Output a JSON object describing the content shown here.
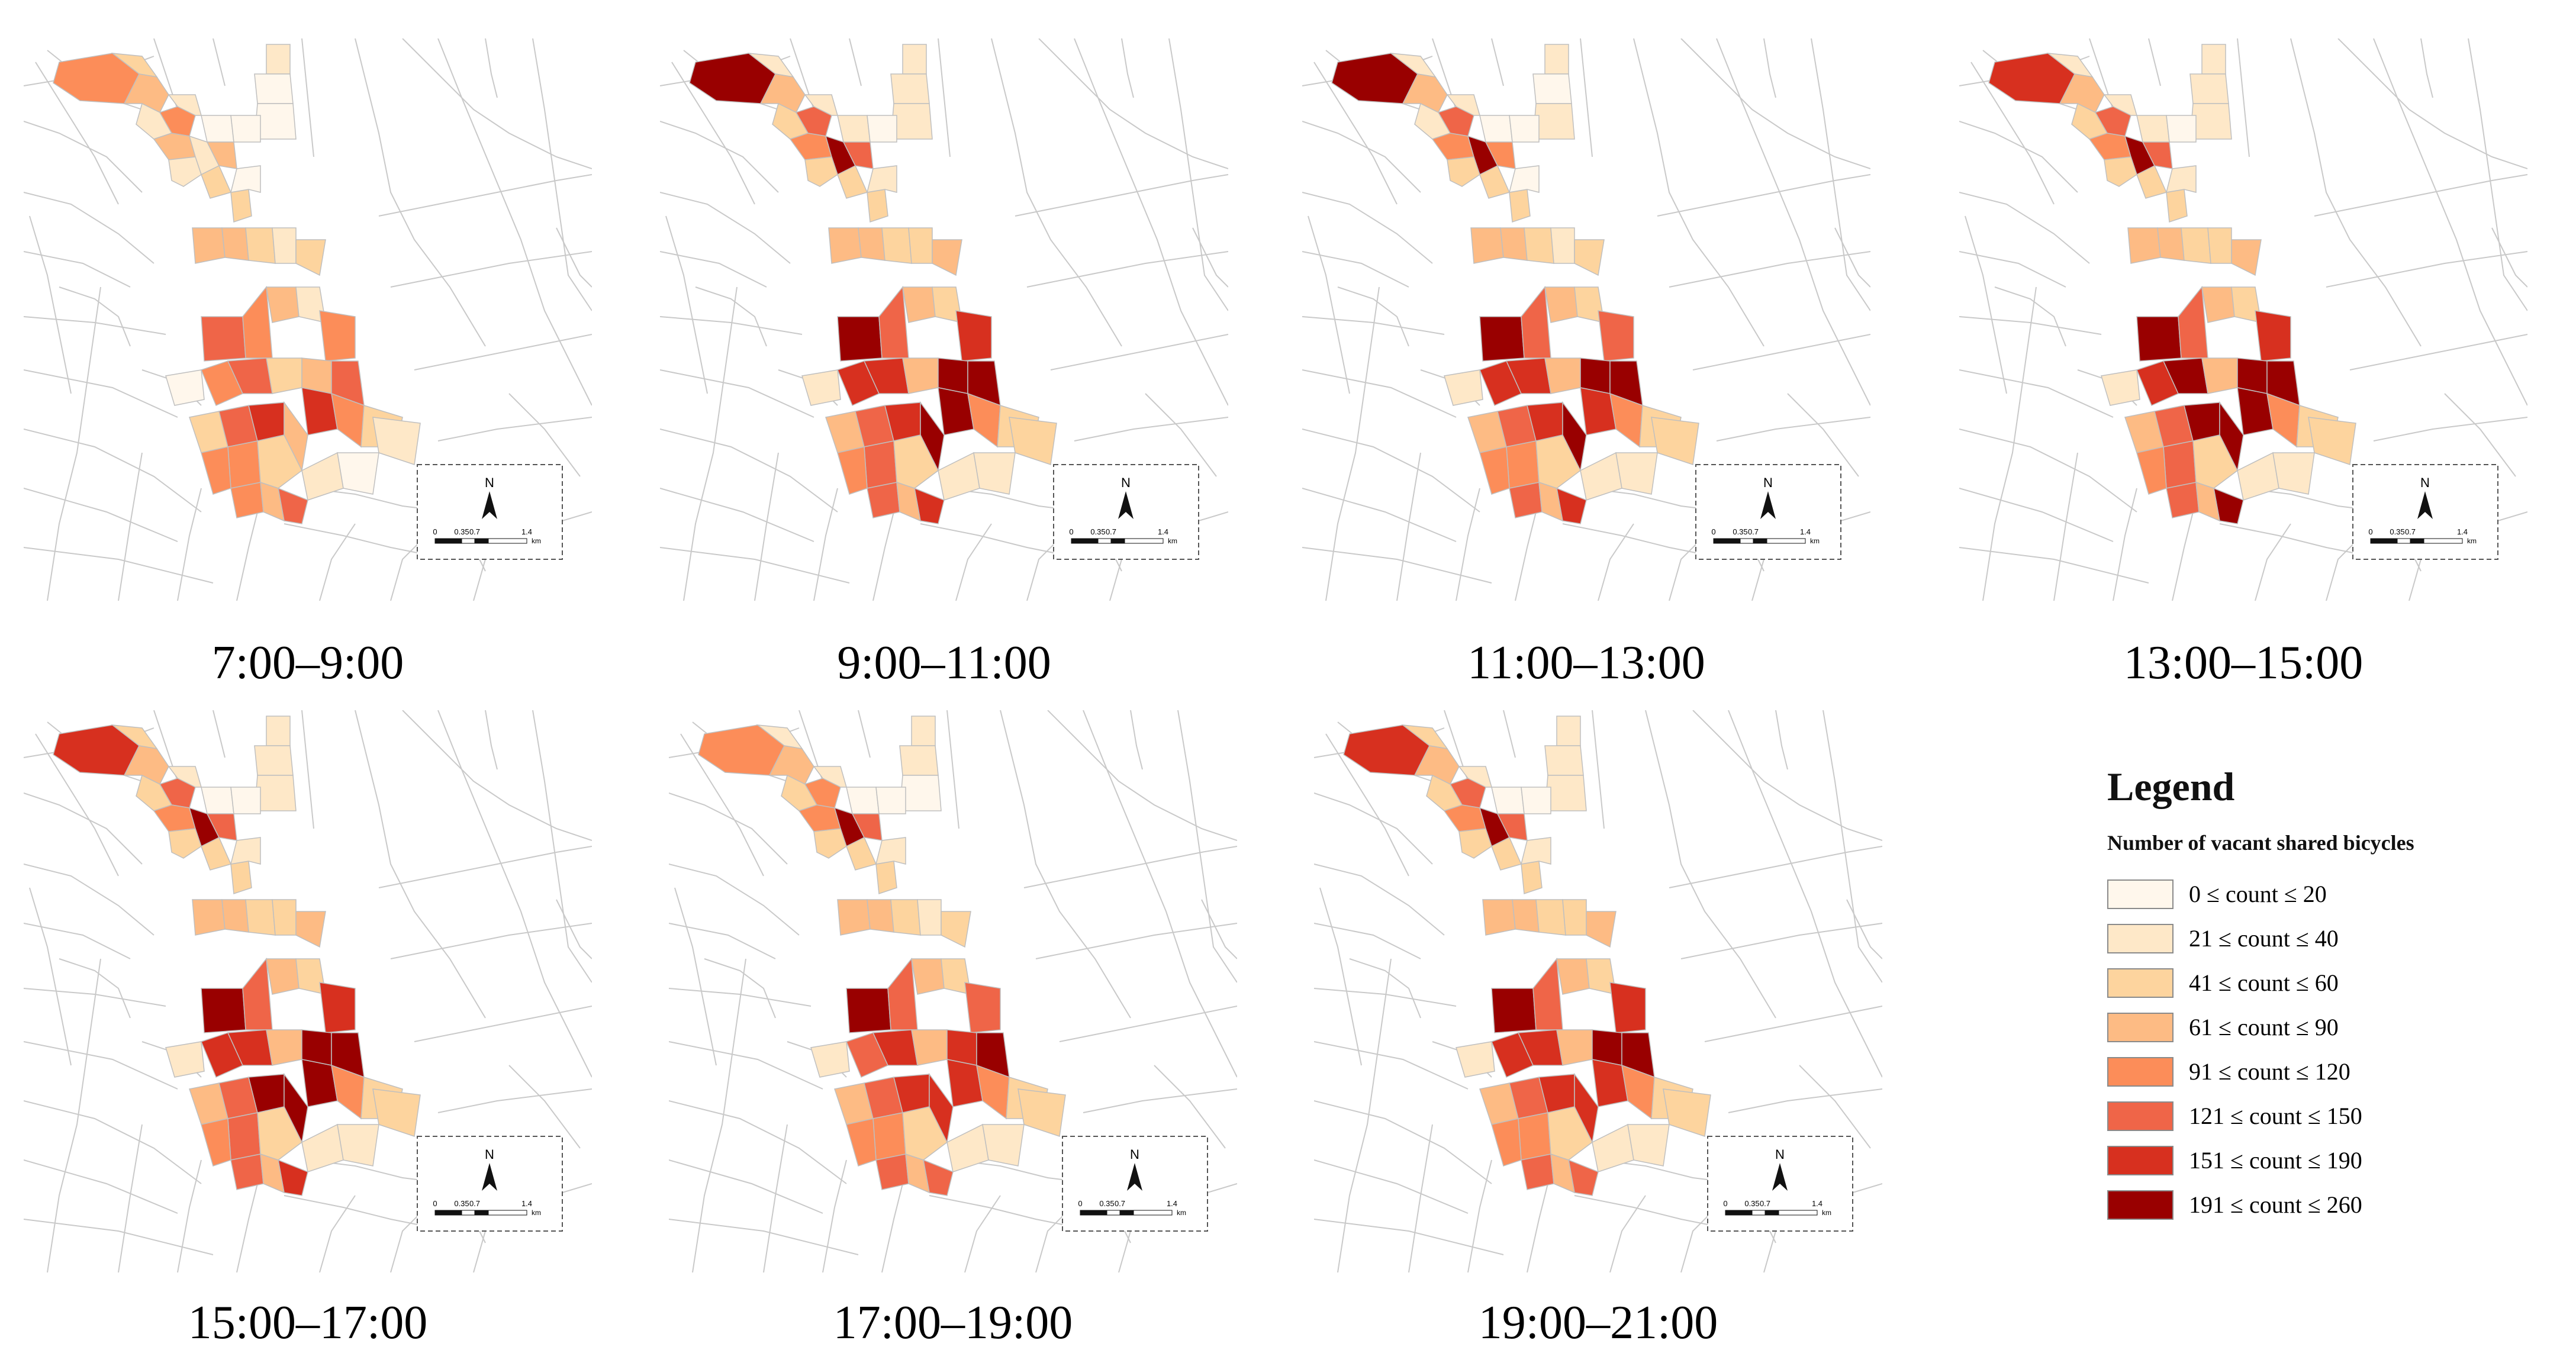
{
  "panels": [
    {
      "caption": "7:00–9:00",
      "levels": [
        5,
        3,
        4,
        2,
        5,
        2,
        2,
        1,
        1,
        1,
        1,
        4,
        2,
        4,
        2,
        3,
        3,
        1,
        4,
        4,
        3,
        2,
        3,
        6,
        5,
        4,
        2,
        5,
        1,
        5,
        6,
        3,
        4,
        6,
        7,
        5,
        3,
        3,
        6,
        7,
        4,
        5,
        3,
        2,
        5,
        6,
        5,
        4,
        1,
        2
      ]
    },
    {
      "caption": "9:00–11:00",
      "levels": [
        8,
        2,
        4,
        2,
        6,
        3,
        2,
        2,
        2,
        2,
        1,
        5,
        8,
        6,
        3,
        3,
        3,
        2,
        4,
        4,
        3,
        3,
        4,
        8,
        6,
        4,
        3,
        7,
        2,
        7,
        7,
        4,
        8,
        8,
        8,
        5,
        3,
        4,
        6,
        7,
        8,
        6,
        3,
        2,
        5,
        7,
        6,
        4,
        2,
        3
      ]
    },
    {
      "caption": "11:00–13:00",
      "levels": [
        8,
        2,
        4,
        2,
        6,
        2,
        2,
        1,
        2,
        1,
        1,
        5,
        8,
        5,
        3,
        3,
        3,
        1,
        4,
        4,
        3,
        2,
        3,
        8,
        6,
        4,
        3,
        6,
        2,
        7,
        7,
        4,
        8,
        8,
        7,
        5,
        3,
        4,
        6,
        7,
        8,
        5,
        3,
        2,
        5,
        7,
        6,
        4,
        2,
        3
      ]
    },
    {
      "caption": "13:00–15:00",
      "levels": [
        7,
        2,
        4,
        2,
        6,
        3,
        2,
        2,
        2,
        2,
        1,
        5,
        8,
        6,
        3,
        3,
        3,
        2,
        4,
        4,
        3,
        3,
        4,
        8,
        6,
        4,
        3,
        7,
        2,
        7,
        8,
        4,
        8,
        8,
        8,
        5,
        3,
        4,
        6,
        8,
        8,
        6,
        3,
        2,
        5,
        8,
        6,
        4,
        2,
        3
      ]
    },
    {
      "caption": "15:00–17:00",
      "levels": [
        7,
        3,
        4,
        2,
        6,
        3,
        2,
        2,
        2,
        1,
        1,
        5,
        8,
        6,
        3,
        3,
        3,
        2,
        4,
        4,
        3,
        3,
        4,
        8,
        6,
        4,
        3,
        7,
        2,
        7,
        7,
        4,
        8,
        8,
        8,
        5,
        3,
        4,
        6,
        8,
        8,
        6,
        3,
        2,
        5,
        7,
        6,
        4,
        2,
        3
      ]
    },
    {
      "caption": "17:00–19:00",
      "levels": [
        5,
        2,
        4,
        2,
        5,
        3,
        2,
        2,
        1,
        1,
        1,
        5,
        8,
        6,
        3,
        3,
        3,
        2,
        4,
        4,
        3,
        2,
        3,
        8,
        6,
        4,
        3,
        6,
        2,
        6,
        7,
        4,
        7,
        8,
        7,
        5,
        3,
        4,
        6,
        7,
        7,
        5,
        3,
        2,
        5,
        6,
        6,
        4,
        2,
        3
      ]
    },
    {
      "caption": "19:00–21:00",
      "levels": [
        7,
        3,
        4,
        2,
        6,
        3,
        2,
        2,
        2,
        1,
        1,
        5,
        8,
        6,
        3,
        3,
        3,
        2,
        4,
        4,
        3,
        3,
        4,
        8,
        6,
        4,
        3,
        7,
        2,
        7,
        7,
        4,
        8,
        8,
        7,
        5,
        3,
        4,
        6,
        7,
        7,
        5,
        3,
        2,
        5,
        6,
        6,
        4,
        2,
        3
      ]
    }
  ],
  "scalebar": {
    "north": "N",
    "ticks": [
      "0",
      "0.35",
      "0.7",
      "1.4"
    ],
    "unit": "km"
  },
  "legend": {
    "title": "Legend",
    "subtitle": "Number of vacant shared bicycles",
    "items": [
      {
        "label": "0 ≤ count ≤  20",
        "color": "#fff7ec"
      },
      {
        "label": "21 ≤ count ≤  40",
        "color": "#fee8c8"
      },
      {
        "label": "41 ≤ count ≤  60",
        "color": "#fdd49e"
      },
      {
        "label": "61 ≤ count ≤  90",
        "color": "#fdbb84"
      },
      {
        "label": "91 ≤ count ≤  120",
        "color": "#fc8d59"
      },
      {
        "label": "121 ≤ count ≤ 150",
        "color": "#ef6548"
      },
      {
        "label": "151 ≤ count ≤ 190",
        "color": "#d7301f"
      },
      {
        "label": "191 ≤ count ≤ 260",
        "color": "#990000"
      }
    ]
  }
}
